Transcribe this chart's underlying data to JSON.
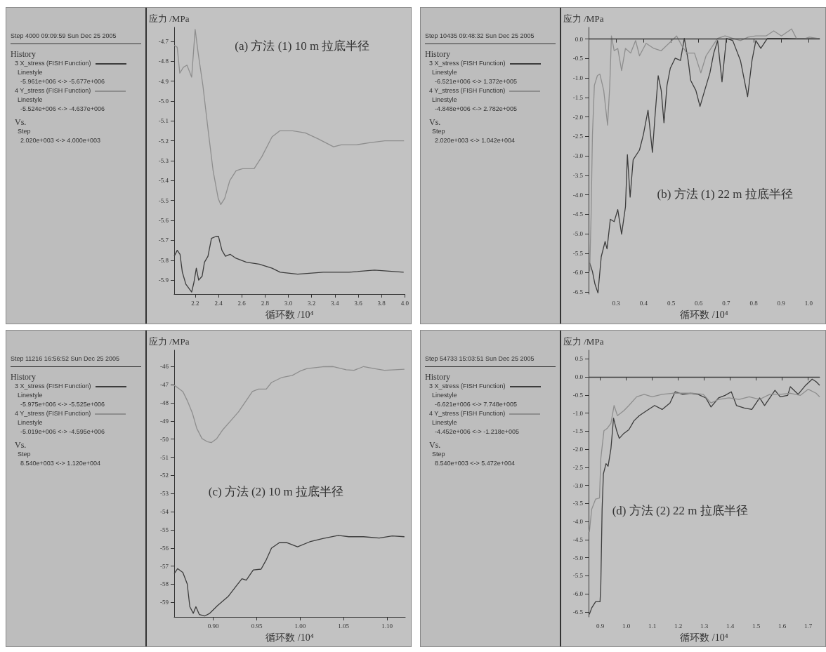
{
  "chart_data": [
    {
      "type": "line",
      "legend": "left",
      "title": "(a) 方法 (1) 10 m 拉底半径",
      "xlabel": "循环数 /10⁴",
      "ylabel": "应力 /MPa",
      "annotations": [
        "Step 4000  09:09:59 Sun Dec 25 2005",
        "History",
        "Linestyle",
        "-5.961e+006 <-> -5.677e+006",
        "Linestyle",
        "-5.524e+006 <-> -4.637e+006",
        "Vs.",
        "Step",
        "2.020e+003 <-> 4.000e+003"
      ],
      "xlim": [
        2.02,
        4.0
      ],
      "xticks": [
        2.2,
        2.4,
        2.6,
        2.8,
        {
          "value": 3,
          "label": "3.0"
        },
        3.2,
        3.4,
        3.6,
        3.8,
        {
          "value": 4,
          "label": "4.0"
        }
      ],
      "ylim": [
        -5.97,
        -4.63
      ],
      "yticks": [
        -4.7,
        -4.8,
        -4.9,
        {
          "value": -5,
          "label": "-5.0"
        },
        -5.1,
        -5.2,
        -5.3,
        -5.4,
        -5.5,
        -5.6,
        -5.7,
        -5.8,
        -5.9
      ],
      "series": [
        {
          "name": "3 X_stress (FISH Function)",
          "color": "#3c3c3c",
          "x": [
            2.02,
            2.046,
            2.07,
            2.09,
            2.12,
            2.17,
            2.19,
            2.21,
            2.23,
            2.26,
            2.28,
            2.31,
            2.34,
            2.38,
            2.4,
            2.43,
            2.46,
            2.5,
            2.55,
            2.64,
            2.75,
            2.86,
            2.93,
            3.08,
            3.3,
            3.52,
            3.74,
            3.99
          ],
          "values": [
            -5.78,
            -5.75,
            -5.77,
            -5.86,
            -5.92,
            -5.96,
            -5.91,
            -5.84,
            -5.9,
            -5.88,
            -5.81,
            -5.78,
            -5.69,
            -5.68,
            -5.68,
            -5.75,
            -5.78,
            -5.77,
            -5.79,
            -5.81,
            -5.82,
            -5.84,
            -5.86,
            -5.87,
            -5.86,
            -5.86,
            -5.85,
            -5.86
          ]
        },
        {
          "name": "4 Y_stress (FISH Function)",
          "color": "#8e8e8e",
          "x": [
            2.02,
            2.046,
            2.068,
            2.1,
            2.13,
            2.17,
            2.2,
            2.226,
            2.266,
            2.31,
            2.354,
            2.398,
            2.42,
            2.453,
            2.497,
            2.552,
            2.607,
            2.706,
            2.772,
            2.86,
            2.926,
            3.036,
            3.146,
            3.256,
            3.388,
            3.454,
            3.586,
            3.696,
            3.828,
            3.993
          ],
          "values": [
            -4.72,
            -4.73,
            -4.86,
            -4.83,
            -4.82,
            -4.88,
            -4.64,
            -4.76,
            -4.92,
            -5.14,
            -5.35,
            -5.49,
            -5.52,
            -5.49,
            -5.4,
            -5.35,
            -5.34,
            -5.34,
            -5.28,
            -5.18,
            -5.15,
            -5.15,
            -5.16,
            -5.19,
            -5.23,
            -5.22,
            -5.22,
            -5.21,
            -5.2,
            -5.2
          ]
        }
      ]
    },
    {
      "type": "line",
      "legend": "left",
      "title": "(b) 方法 (1) 22 m 拉底半径",
      "xlabel": "循环数 /10⁴",
      "ylabel": "应力 /MPa",
      "annotations": [
        "Step 10435  09:48:32 Sun Dec 25 2005",
        "History",
        "Linestyle",
        "-6.521e+006 <-> 1.372e+005",
        "Linestyle",
        "-4.848e+006 <-> 2.782e+005",
        "Vs.",
        "Step",
        "2.020e+003 <-> 1.042e+004"
      ],
      "xlim": [
        0.2,
        1.04
      ],
      "xticks": [
        0.3,
        0.4,
        0.5,
        0.6,
        0.7,
        0.8,
        0.9,
        {
          "value": 1,
          "label": "1.0"
        }
      ],
      "ylim": [
        -6.55,
        0.3
      ],
      "yticks": [
        {
          "value": 0,
          "label": "0.0"
        },
        -0.5,
        {
          "value": -1,
          "label": "-1.0"
        },
        -1.5,
        {
          "value": -2,
          "label": "-2.0"
        },
        -2.5,
        {
          "value": -3,
          "label": "-3.0"
        },
        -3.5,
        {
          "value": -4,
          "label": "-4.0"
        },
        -4.5,
        {
          "value": -5,
          "label": "-5.0"
        },
        -5.5,
        {
          "value": -6,
          "label": "-6.0"
        },
        -6.5
      ],
      "ref_lines": [
        {
          "axis": "y",
          "value": 0,
          "color": "#3c3c3c"
        }
      ],
      "series": [
        {
          "name": "3 X_stress (FISH Function)",
          "color": "#3c3c3c",
          "x": [
            0.204,
            0.214,
            0.223,
            0.234,
            0.246,
            0.26,
            0.267,
            0.279,
            0.293,
            0.306,
            0.32,
            0.334,
            0.341,
            0.351,
            0.362,
            0.385,
            0.399,
            0.416,
            0.432,
            0.441,
            0.453,
            0.464,
            0.474,
            0.485,
            0.497,
            0.515,
            0.534,
            0.548,
            0.562,
            0.571,
            0.59,
            0.605,
            0.622,
            0.641,
            0.655,
            0.669,
            0.685,
            0.701,
            0.724,
            0.752,
            0.778,
            0.794,
            0.808,
            0.826,
            0.85,
            0.882,
            0.919,
            0.956,
            1.012,
            1.04
          ],
          "values": [
            -5.75,
            -5.97,
            -6.29,
            -6.52,
            -5.59,
            -5.2,
            -5.39,
            -4.63,
            -4.69,
            -4.38,
            -5.01,
            -4.31,
            -2.97,
            -4.06,
            -3.1,
            -2.85,
            -2.46,
            -1.83,
            -2.91,
            -2.02,
            -0.94,
            -1.32,
            -2.15,
            -1.19,
            -0.75,
            -0.49,
            -0.55,
            0.02,
            -0.55,
            -1.06,
            -1.32,
            -1.73,
            -1.32,
            -0.87,
            -0.36,
            -0.04,
            -1.1,
            0.02,
            -0.04,
            -0.55,
            -1.48,
            -0.55,
            -0.04,
            -0.24,
            0.02,
            0.02,
            0.02,
            0.01,
            0.01,
            0.01
          ]
        },
        {
          "name": "4 Y_stress (FISH Function)",
          "color": "#8e8e8e",
          "x": [
            0.204,
            0.209,
            0.214,
            0.221,
            0.232,
            0.241,
            0.255,
            0.269,
            0.277,
            0.283,
            0.293,
            0.306,
            0.32,
            0.334,
            0.353,
            0.371,
            0.385,
            0.409,
            0.437,
            0.464,
            0.492,
            0.52,
            0.539,
            0.557,
            0.585,
            0.608,
            0.627,
            0.645,
            0.669,
            0.696,
            0.724,
            0.752,
            0.78,
            0.808,
            0.845,
            0.873,
            0.901,
            0.938,
            0.956,
            0.984,
            1.003,
            1.04
          ],
          "values": [
            -5.97,
            -4.57,
            -2.46,
            -1.19,
            -0.94,
            -0.9,
            -1.32,
            -2.21,
            -1.19,
            0.08,
            -0.3,
            -0.24,
            -0.81,
            -0.24,
            -0.36,
            -0.04,
            -0.43,
            -0.11,
            -0.24,
            -0.3,
            -0.11,
            0.08,
            -0.17,
            -0.36,
            -0.36,
            -0.87,
            -0.43,
            -0.24,
            0.02,
            0.08,
            0.02,
            -0.04,
            0.05,
            0.08,
            0.08,
            0.21,
            0.08,
            0.26,
            0.01,
            0.01,
            0.05,
            0.01
          ]
        }
      ]
    },
    {
      "type": "line",
      "legend": "left",
      "title": "(c) 方法 (2) 10 m 拉底半径",
      "xlabel": "循环数 /10⁴",
      "ylabel": "应力 /MPa",
      "annotations": [
        "Step 11216  16:56:52 Sun Dec 25 2005",
        "History",
        "Linestyle",
        "-5.975e+006 <-> -5.525e+006",
        "Linestyle",
        "-5.019e+006 <-> -4.595e+006",
        "Vs.",
        "Step",
        "8.540e+003 <-> 1.120e+004"
      ],
      "xlim": [
        0.855,
        1.121
      ],
      "xticks": [
        {
          "value": 0.9,
          "label": "0.90"
        },
        0.95,
        {
          "value": 1,
          "label": "1.00"
        },
        1.05,
        {
          "value": 1.1,
          "label": "1.10"
        }
      ],
      "ylim": [
        -59.8,
        -45.1
      ],
      "yticks": [
        -46,
        -47,
        -48,
        -49,
        -50,
        -51,
        -52,
        -53,
        -54,
        -55,
        -56,
        -57,
        -58,
        -59
      ],
      "series": [
        {
          "name": "3 X_stress (FISH Function)",
          "color": "#3c3c3c",
          "x": [
            0.855,
            0.859,
            0.865,
            0.87,
            0.873,
            0.877,
            0.88,
            0.884,
            0.89,
            0.896,
            0.905,
            0.917,
            0.926,
            0.933,
            0.938,
            0.946,
            0.955,
            0.961,
            0.967,
            0.976,
            0.985,
            0.997,
            1.011,
            1.026,
            1.044,
            1.056,
            1.073,
            1.091,
            1.106,
            1.12
          ],
          "values": [
            -57.42,
            -57.14,
            -57.35,
            -57.98,
            -59.24,
            -59.6,
            -59.24,
            -59.67,
            -59.75,
            -59.6,
            -59.17,
            -58.68,
            -58.12,
            -57.7,
            -57.77,
            -57.21,
            -57.17,
            -56.65,
            -56.01,
            -55.71,
            -55.71,
            -55.94,
            -55.66,
            -55.48,
            -55.31,
            -55.38,
            -55.38,
            -55.45,
            -55.34,
            -55.38
          ]
        },
        {
          "name": "4 Y_stress (FISH Function)",
          "color": "#8e8e8e",
          "x": [
            0.855,
            0.861,
            0.865,
            0.87,
            0.876,
            0.881,
            0.887,
            0.893,
            0.898,
            0.904,
            0.911,
            0.92,
            0.929,
            0.938,
            0.945,
            0.952,
            0.961,
            0.967,
            0.979,
            0.991,
            1.0,
            1.008,
            1.026,
            1.038,
            1.053,
            1.062,
            1.073,
            1.085,
            1.097,
            1.109,
            1.12
          ],
          "values": [
            -47.03,
            -47.24,
            -47.38,
            -47.87,
            -48.57,
            -49.41,
            -49.97,
            -50.14,
            -50.19,
            -49.97,
            -49.48,
            -48.99,
            -48.5,
            -47.87,
            -47.38,
            -47.24,
            -47.24,
            -46.88,
            -46.6,
            -46.49,
            -46.25,
            -46.11,
            -46.01,
            -46.0,
            -46.18,
            -46.21,
            -46.0,
            -46.11,
            -46.21,
            -46.18,
            -46.15
          ]
        }
      ]
    },
    {
      "type": "line",
      "legend": "left",
      "title": "(d) 方法 (2) 22 m 拉底半径",
      "xlabel": "循环数 /10⁴",
      "ylabel": "应力 /MPa",
      "annotations": [
        "Step 54733  15:03:51 Sun Dec 25 2005",
        "History",
        "Linestyle",
        "-6.621e+006 <-> 7.748e+005",
        "Linestyle",
        "-4.452e+006 <-> -1.218e+005",
        "Vs.",
        "Step",
        "8.540e+003 <-> 5.472e+004"
      ],
      "xlim": [
        0.855,
        1.744
      ],
      "xticks": [
        0.9,
        {
          "value": 1,
          "label": "1.0"
        },
        1.1,
        1.2,
        1.3,
        1.4,
        1.5,
        1.6,
        1.7
      ],
      "ylim": [
        -6.64,
        0.74
      ],
      "yticks": [
        0.5,
        {
          "value": 0,
          "label": "0.0"
        },
        -0.5,
        {
          "value": -1,
          "label": "-1.0"
        },
        -1.5,
        {
          "value": -2,
          "label": "-2.0"
        },
        -2.5,
        {
          "value": -3,
          "label": "-3.0"
        },
        -3.5,
        {
          "value": -4,
          "label": "-4.0"
        },
        -4.5,
        {
          "value": -5,
          "label": "-5.0"
        },
        -5.5,
        {
          "value": -6,
          "label": "-6.0"
        },
        -6.5
      ],
      "ref_lines": [
        {
          "axis": "y",
          "value": 0,
          "color": "#3c3c3c"
        }
      ],
      "series": [
        {
          "name": "3 X_stress (FISH Function)",
          "color": "#3c3c3c",
          "x": [
            0.858,
            0.867,
            0.882,
            0.899,
            0.902,
            0.907,
            0.912,
            0.922,
            0.93,
            0.941,
            0.951,
            0.963,
            0.973,
            0.991,
            1.01,
            1.03,
            1.05,
            1.079,
            1.109,
            1.138,
            1.168,
            1.188,
            1.217,
            1.247,
            1.276,
            1.306,
            1.326,
            1.355,
            1.38,
            1.404,
            1.424,
            1.454,
            1.483,
            1.513,
            1.532,
            1.572,
            1.592,
            1.621,
            1.631,
            1.661,
            1.69,
            1.715,
            1.73,
            1.744
          ],
          "values": [
            -6.57,
            -6.39,
            -6.22,
            -6.22,
            -5.76,
            -3.66,
            -2.68,
            -2.4,
            -2.47,
            -1.98,
            -1.14,
            -1.49,
            -1.7,
            -1.56,
            -1.46,
            -1.21,
            -1.07,
            -0.93,
            -0.79,
            -0.9,
            -0.72,
            -0.41,
            -0.48,
            -0.45,
            -0.48,
            -0.58,
            -0.83,
            -0.58,
            -0.51,
            -0.41,
            -0.79,
            -0.86,
            -0.9,
            -0.58,
            -0.79,
            -0.37,
            -0.55,
            -0.51,
            -0.27,
            -0.48,
            -0.23,
            -0.06,
            -0.13,
            -0.23
          ]
        },
        {
          "name": "4 Y_stress (FISH Function)",
          "color": "#8e8e8e",
          "x": [
            0.858,
            0.867,
            0.882,
            0.897,
            0.902,
            0.914,
            0.927,
            0.941,
            0.953,
            0.966,
            0.991,
            1.01,
            1.04,
            1.069,
            1.099,
            1.138,
            1.178,
            1.217,
            1.257,
            1.296,
            1.326,
            1.355,
            1.395,
            1.434,
            1.473,
            1.513,
            1.552,
            1.592,
            1.631,
            1.67,
            1.7,
            1.73,
            1.744
          ],
          "values": [
            -4.29,
            -3.66,
            -3.38,
            -3.35,
            -2.26,
            -1.49,
            -1.42,
            -1.28,
            -0.79,
            -1.07,
            -0.93,
            -0.79,
            -0.55,
            -0.48,
            -0.55,
            -0.48,
            -0.45,
            -0.45,
            -0.45,
            -0.48,
            -0.72,
            -0.62,
            -0.58,
            -0.62,
            -0.55,
            -0.62,
            -0.48,
            -0.48,
            -0.45,
            -0.51,
            -0.34,
            -0.45,
            -0.55
          ]
        }
      ]
    }
  ]
}
